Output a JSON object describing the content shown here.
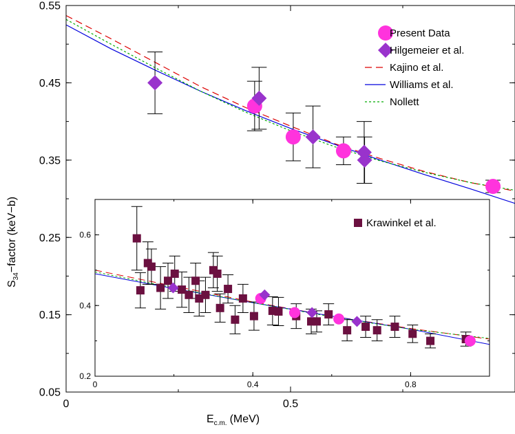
{
  "chart_data": [
    {
      "type": "scatter",
      "panel": "main",
      "xlabel_main": "E",
      "xlabel_sub": "c.m.",
      "xlabel_unit": "(MeV)",
      "ylabel_main": "S",
      "ylabel_sub": "34",
      "ylabel_unit": "−factor (keV−b)",
      "xlim": [
        0,
        1.0
      ],
      "ylim": [
        0.05,
        0.55
      ],
      "xticks": [
        0,
        0.5
      ],
      "xtick_labels": [
        "0",
        "0.5"
      ],
      "yticks": [
        0.05,
        0.15,
        0.25,
        0.35,
        0.45,
        0.55
      ],
      "ytick_labels": [
        "0.05",
        "0.15",
        "0.25",
        "0.35",
        "0.45",
        "0.55"
      ],
      "grid": false,
      "legend_position": "top-right",
      "series": [
        {
          "name": "Present Data",
          "kind": "points",
          "marker": "circle",
          "color": "#FF33DD",
          "points": [
            {
              "x": 0.42,
              "y": 0.42,
              "err": 0.032
            },
            {
              "x": 0.506,
              "y": 0.38,
              "err": 0.031
            },
            {
              "x": 0.618,
              "y": 0.362,
              "err": 0.018
            },
            {
              "x": 0.951,
              "y": 0.316,
              "err": 0.008
            }
          ]
        },
        {
          "name": "Hilgemeier et al.",
          "kind": "points",
          "marker": "diamond",
          "color": "#9933CC",
          "points": [
            {
              "x": 0.198,
              "y": 0.45,
              "err": 0.04
            },
            {
              "x": 0.43,
              "y": 0.43,
              "err": 0.04
            },
            {
              "x": 0.55,
              "y": 0.38,
              "err": 0.04
            },
            {
              "x": 0.664,
              "y": 0.36,
              "err": 0.04
            },
            {
              "x": 0.665,
              "y": 0.35,
              "err": 0.03
            }
          ]
        },
        {
          "name": "Kajino et al.",
          "kind": "line",
          "dash": "10,6",
          "color": "#DD0000",
          "points": [
            [
              0,
              0.537
            ],
            [
              0.1,
              0.507
            ],
            [
              0.2,
              0.476
            ],
            [
              0.3,
              0.445
            ],
            [
              0.4,
              0.418
            ],
            [
              0.5,
              0.394
            ],
            [
              0.6,
              0.371
            ],
            [
              0.7,
              0.352
            ],
            [
              0.8,
              0.335
            ],
            [
              0.9,
              0.321
            ],
            [
              1.0,
              0.31
            ]
          ]
        },
        {
          "name": "Williams et al.",
          "kind": "line",
          "dash": "",
          "color": "#0000DD",
          "points": [
            [
              0,
              0.525
            ],
            [
              0.1,
              0.494
            ],
            [
              0.2,
              0.466
            ],
            [
              0.3,
              0.439
            ],
            [
              0.4,
              0.414
            ],
            [
              0.5,
              0.391
            ],
            [
              0.6,
              0.37
            ],
            [
              0.7,
              0.35
            ],
            [
              0.8,
              0.331
            ],
            [
              0.9,
              0.313
            ],
            [
              1.0,
              0.294
            ]
          ]
        },
        {
          "name": "Nollett",
          "kind": "line",
          "dash": "3,3",
          "color": "#00AA00",
          "points": [
            [
              0,
              0.532
            ],
            [
              0.1,
              0.5
            ],
            [
              0.2,
              0.469
            ],
            [
              0.3,
              0.439
            ],
            [
              0.4,
              0.412
            ],
            [
              0.5,
              0.388
            ],
            [
              0.6,
              0.367
            ],
            [
              0.7,
              0.349
            ],
            [
              0.8,
              0.334
            ],
            [
              0.9,
              0.321
            ],
            [
              1.0,
              0.311
            ]
          ]
        }
      ]
    },
    {
      "type": "scatter",
      "panel": "inset",
      "xlim": [
        0,
        1.0
      ],
      "ylim": [
        0.2,
        0.7
      ],
      "xticks": [
        0,
        0.4,
        0.8
      ],
      "xtick_labels": [
        "0",
        "0.4",
        "0.8"
      ],
      "yticks": [
        0.2,
        0.4,
        0.6
      ],
      "ytick_labels": [
        "0.2",
        "0.4",
        "0.6"
      ],
      "grid": false,
      "legend_position": "top-right",
      "series": [
        {
          "name": "Krawinkel et al.",
          "kind": "points",
          "marker": "square",
          "color": "#6B1040",
          "points": [
            {
              "x": 0.106,
              "y": 0.59,
              "err": 0.09
            },
            {
              "x": 0.115,
              "y": 0.443,
              "err": 0.05
            },
            {
              "x": 0.134,
              "y": 0.52,
              "err": 0.06
            },
            {
              "x": 0.143,
              "y": 0.51,
              "err": 0.05
            },
            {
              "x": 0.166,
              "y": 0.45,
              "err": 0.06
            },
            {
              "x": 0.185,
              "y": 0.47,
              "err": 0.05
            },
            {
              "x": 0.202,
              "y": 0.49,
              "err": 0.05
            },
            {
              "x": 0.22,
              "y": 0.445,
              "err": 0.05
            },
            {
              "x": 0.238,
              "y": 0.43,
              "err": 0.05
            },
            {
              "x": 0.255,
              "y": 0.47,
              "err": 0.05
            },
            {
              "x": 0.264,
              "y": 0.42,
              "err": 0.05
            },
            {
              "x": 0.28,
              "y": 0.43,
              "err": 0.05
            },
            {
              "x": 0.3,
              "y": 0.5,
              "err": 0.05
            },
            {
              "x": 0.31,
              "y": 0.49,
              "err": 0.05
            },
            {
              "x": 0.317,
              "y": 0.393,
              "err": 0.04
            },
            {
              "x": 0.337,
              "y": 0.447,
              "err": 0.04
            },
            {
              "x": 0.355,
              "y": 0.36,
              "err": 0.04
            },
            {
              "x": 0.375,
              "y": 0.42,
              "err": 0.04
            },
            {
              "x": 0.403,
              "y": 0.37,
              "err": 0.04
            },
            {
              "x": 0.45,
              "y": 0.385,
              "err": 0.04
            },
            {
              "x": 0.465,
              "y": 0.383,
              "err": 0.04
            },
            {
              "x": 0.51,
              "y": 0.37,
              "err": 0.035
            },
            {
              "x": 0.548,
              "y": 0.355,
              "err": 0.035
            },
            {
              "x": 0.562,
              "y": 0.355,
              "err": 0.03
            },
            {
              "x": 0.592,
              "y": 0.375,
              "err": 0.03
            },
            {
              "x": 0.639,
              "y": 0.33,
              "err": 0.03
            },
            {
              "x": 0.686,
              "y": 0.34,
              "err": 0.03
            },
            {
              "x": 0.715,
              "y": 0.33,
              "err": 0.03
            },
            {
              "x": 0.76,
              "y": 0.34,
              "err": 0.03
            },
            {
              "x": 0.805,
              "y": 0.32,
              "err": 0.025
            },
            {
              "x": 0.85,
              "y": 0.3,
              "err": 0.02
            },
            {
              "x": 0.94,
              "y": 0.305,
              "err": 0.02
            }
          ]
        },
        {
          "kind": "points",
          "marker": "circle",
          "color": "#FF33DD",
          "points": [
            {
              "x": 0.42,
              "y": 0.42
            },
            {
              "x": 0.506,
              "y": 0.38
            },
            {
              "x": 0.618,
              "y": 0.362
            },
            {
              "x": 0.951,
              "y": 0.3
            }
          ]
        },
        {
          "kind": "points",
          "marker": "diamond",
          "color": "#9933CC",
          "points": [
            {
              "x": 0.198,
              "y": 0.45
            },
            {
              "x": 0.43,
              "y": 0.43
            },
            {
              "x": 0.55,
              "y": 0.38
            },
            {
              "x": 0.664,
              "y": 0.355
            }
          ]
        },
        {
          "kind": "line",
          "dash": "10,6",
          "color": "#DD0000",
          "points": [
            [
              0,
              0.5
            ],
            [
              0.2,
              0.455
            ],
            [
              0.4,
              0.41
            ],
            [
              0.6,
              0.37
            ],
            [
              0.8,
              0.335
            ],
            [
              1.0,
              0.305
            ]
          ]
        },
        {
          "kind": "line",
          "dash": "",
          "color": "#0000DD",
          "points": [
            [
              0,
              0.49
            ],
            [
              0.2,
              0.448
            ],
            [
              0.4,
              0.408
            ],
            [
              0.6,
              0.37
            ],
            [
              0.8,
              0.333
            ],
            [
              1.0,
              0.29
            ]
          ]
        },
        {
          "kind": "line",
          "dash": "3,3",
          "color": "#00AA00",
          "points": [
            [
              0,
              0.495
            ],
            [
              0.2,
              0.45
            ],
            [
              0.4,
              0.408
            ],
            [
              0.6,
              0.368
            ],
            [
              0.8,
              0.333
            ],
            [
              1.0,
              0.307
            ]
          ]
        }
      ]
    }
  ]
}
